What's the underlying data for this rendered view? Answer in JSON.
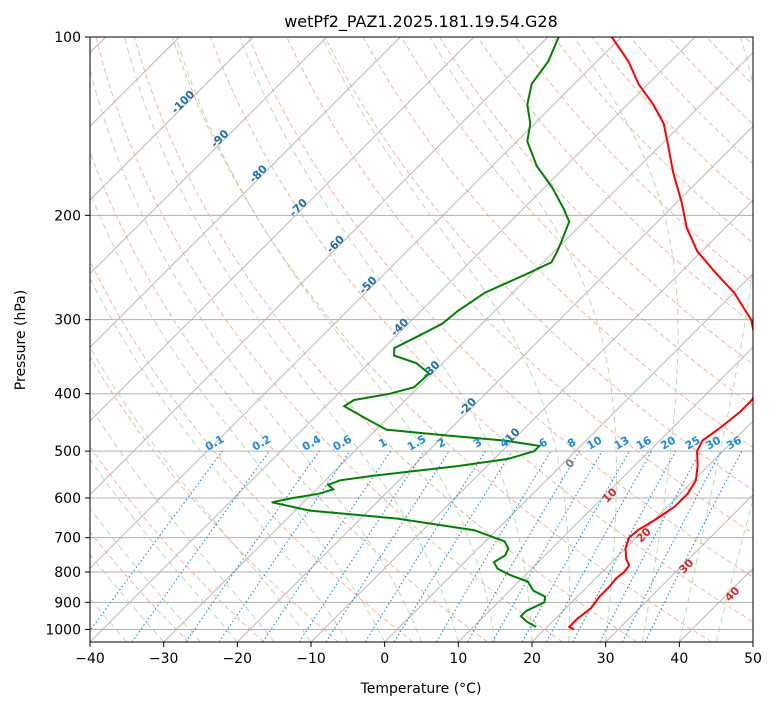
{
  "chart_data": {
    "type": "line",
    "subtype": "skew-t log-p",
    "title": "wetPf2_PAZ1.2025.181.19.54.G28",
    "xlabel": "Temperature (°C)",
    "ylabel": "Pressure (hPa)",
    "xlim": [
      -40,
      50
    ],
    "ylim": [
      1050,
      100
    ],
    "y_scale": "log",
    "grid": true,
    "x_ticks": [
      "−40",
      "−30",
      "−20",
      "−10",
      "0",
      "10",
      "20",
      "30",
      "40",
      "50"
    ],
    "y_ticks": [
      "100",
      "200",
      "300",
      "400",
      "500",
      "600",
      "700",
      "800",
      "900",
      "1000"
    ],
    "colors": {
      "temperature": "#ff0000",
      "dewpoint": "#008000",
      "isotherm_grid": "#b0b0b0",
      "dry_adiabat": "#f4a582",
      "moist_adiabat": "#a6d3a0",
      "mixing_ratio": "#1e88e5",
      "isotherm_label": "#1f6fb0",
      "dry_adiabat_label": "#d62728",
      "zero_label": "#808080"
    },
    "series": [
      {
        "key": "temperature",
        "points": [
          {
            "p": 1000,
            "t": 24.0
          },
          {
            "p": 990,
            "t": 23.0
          },
          {
            "p": 960,
            "t": 23.0
          },
          {
            "p": 920,
            "t": 23.4
          },
          {
            "p": 880,
            "t": 23.0
          },
          {
            "p": 850,
            "t": 23.0
          },
          {
            "p": 820,
            "t": 22.8
          },
          {
            "p": 800,
            "t": 23.0
          },
          {
            "p": 780,
            "t": 22.8
          },
          {
            "p": 760,
            "t": 21.5
          },
          {
            "p": 730,
            "t": 20.0
          },
          {
            "p": 700,
            "t": 19.0
          },
          {
            "p": 680,
            "t": 19.2
          },
          {
            "p": 650,
            "t": 20.2
          },
          {
            "p": 620,
            "t": 21.0
          },
          {
            "p": 590,
            "t": 21.0
          },
          {
            "p": 560,
            "t": 20.3
          },
          {
            "p": 530,
            "t": 18.6
          },
          {
            "p": 500,
            "t": 16.5
          },
          {
            "p": 480,
            "t": 15.8
          },
          {
            "p": 460,
            "t": 16.4
          },
          {
            "p": 430,
            "t": 17.0
          },
          {
            "p": 410,
            "t": 17.0
          },
          {
            "p": 390,
            "t": 16.1
          },
          {
            "p": 360,
            "t": 13.5
          },
          {
            "p": 330,
            "t": 10.0
          },
          {
            "p": 300,
            "t": 6.0
          },
          {
            "p": 270,
            "t": 0.0
          },
          {
            "p": 250,
            "t": -5.2
          },
          {
            "p": 230,
            "t": -10.6
          },
          {
            "p": 210,
            "t": -15.2
          },
          {
            "p": 190,
            "t": -19.4
          },
          {
            "p": 170,
            "t": -24.4
          },
          {
            "p": 150,
            "t": -29.6
          },
          {
            "p": 140,
            "t": -32.5
          },
          {
            "p": 130,
            "t": -36.5
          },
          {
            "p": 120,
            "t": -41.3
          },
          {
            "p": 110,
            "t": -45.7
          },
          {
            "p": 100,
            "t": -51.3
          }
        ]
      },
      {
        "key": "dewpoint",
        "points": [
          {
            "p": 990,
            "t": 18.5
          },
          {
            "p": 970,
            "t": 16.5
          },
          {
            "p": 950,
            "t": 15.0
          },
          {
            "p": 930,
            "t": 15.0
          },
          {
            "p": 900,
            "t": 16.3
          },
          {
            "p": 880,
            "t": 15.6
          },
          {
            "p": 860,
            "t": 13.2
          },
          {
            "p": 830,
            "t": 11.2
          },
          {
            "p": 810,
            "t": 8.0
          },
          {
            "p": 790,
            "t": 5.4
          },
          {
            "p": 770,
            "t": 4.0
          },
          {
            "p": 750,
            "t": 4.6
          },
          {
            "p": 730,
            "t": 4.1
          },
          {
            "p": 710,
            "t": 2.6
          },
          {
            "p": 680,
            "t": -3.0
          },
          {
            "p": 650,
            "t": -15.0
          },
          {
            "p": 630,
            "t": -28.0
          },
          {
            "p": 610,
            "t": -34.3
          },
          {
            "p": 600,
            "t": -32.0
          },
          {
            "p": 590,
            "t": -29.0
          },
          {
            "p": 580,
            "t": -27.7
          },
          {
            "p": 570,
            "t": -29.0
          },
          {
            "p": 560,
            "t": -28.0
          },
          {
            "p": 550,
            "t": -24.0
          },
          {
            "p": 530,
            "t": -14.0
          },
          {
            "p": 515,
            "t": -8.0
          },
          {
            "p": 500,
            "t": -5.6
          },
          {
            "p": 490,
            "t": -5.6
          },
          {
            "p": 480,
            "t": -11.0
          },
          {
            "p": 470,
            "t": -20.0
          },
          {
            "p": 460,
            "t": -28.6
          },
          {
            "p": 440,
            "t": -33.0
          },
          {
            "p": 420,
            "t": -37.5
          },
          {
            "p": 410,
            "t": -37.0
          },
          {
            "p": 400,
            "t": -33.0
          },
          {
            "p": 390,
            "t": -30.6
          },
          {
            "p": 370,
            "t": -30.4
          },
          {
            "p": 355,
            "t": -33.6
          },
          {
            "p": 345,
            "t": -37.6
          },
          {
            "p": 335,
            "t": -38.6
          },
          {
            "p": 320,
            "t": -37.0
          },
          {
            "p": 305,
            "t": -35.4
          },
          {
            "p": 290,
            "t": -35.0
          },
          {
            "p": 270,
            "t": -33.8
          },
          {
            "p": 250,
            "t": -30.5
          },
          {
            "p": 240,
            "t": -28.9
          },
          {
            "p": 230,
            "t": -29.6
          },
          {
            "p": 220,
            "t": -30.5
          },
          {
            "p": 205,
            "t": -32.0
          },
          {
            "p": 195,
            "t": -34.5
          },
          {
            "p": 180,
            "t": -38.8
          },
          {
            "p": 165,
            "t": -44.0
          },
          {
            "p": 150,
            "t": -48.6
          },
          {
            "p": 140,
            "t": -50.6
          },
          {
            "p": 130,
            "t": -53.6
          },
          {
            "p": 120,
            "t": -55.8
          },
          {
            "p": 110,
            "t": -56.6
          },
          {
            "p": 100,
            "t": -58.5
          }
        ]
      }
    ],
    "isotherm_labels": [
      {
        "text": "-100",
        "t": -100
      },
      {
        "text": "-90",
        "t": -90
      },
      {
        "text": "-80",
        "t": -80
      },
      {
        "text": "-70",
        "t": -70
      },
      {
        "text": "-60",
        "t": -60
      },
      {
        "text": "-50",
        "t": -50
      },
      {
        "text": "-40",
        "t": -40
      },
      {
        "text": "-30",
        "t": -30
      },
      {
        "text": "-20",
        "t": -20
      },
      {
        "text": "-10",
        "t": -10
      }
    ],
    "mixing_ratio_labels": [
      "0.1",
      "0.2",
      "0.4",
      "0.6",
      "1",
      "1.5",
      "2",
      "3",
      "4",
      "6",
      "8",
      "10",
      "13",
      "16",
      "20",
      "25",
      "30",
      "36"
    ],
    "dry_adiabat_labels": [
      "10",
      "20",
      "30",
      "40"
    ],
    "zero_label": "0"
  }
}
